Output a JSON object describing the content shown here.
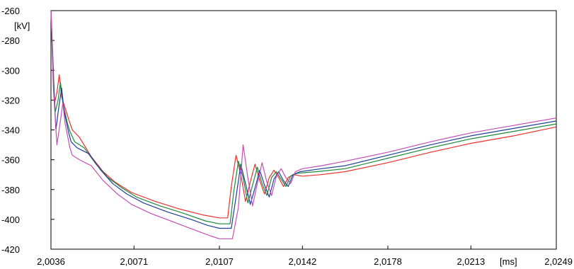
{
  "chart_data": {
    "type": "line",
    "title": "",
    "ylabel": "[kV]",
    "xunit": "[ms]",
    "xlim": [
      2.0036,
      2.0249
    ],
    "ylim": [
      -420,
      -260
    ],
    "xticks": [
      2.0036,
      2.0071,
      2.0107,
      2.0142,
      2.0178,
      2.0213,
      2.0249
    ],
    "xtick_labels": [
      "2,0036",
      "2,0071",
      "2,0107",
      "2,0142",
      "2,0178",
      "2,0213",
      "2,0249"
    ],
    "yticks": [
      -260,
      -280,
      -300,
      -320,
      -340,
      -360,
      -380,
      -400,
      -420
    ],
    "ytick_labels": [
      "-260",
      "-280",
      "-300",
      "-320",
      "-340",
      "-360",
      "-380",
      "-400",
      "-420"
    ],
    "grid": false,
    "legend": "none",
    "series": [
      {
        "color": "#e8322d",
        "points": [
          [
            2.0036,
            -260
          ],
          [
            2.0037,
            -300
          ],
          [
            2.00375,
            -322
          ],
          [
            2.00385,
            -315
          ],
          [
            2.00395,
            -303
          ],
          [
            2.00405,
            -318
          ],
          [
            2.00425,
            -328
          ],
          [
            2.00435,
            -333
          ],
          [
            2.0045,
            -340
          ],
          [
            2.0048,
            -345
          ],
          [
            2.0053,
            -358
          ],
          [
            2.0058,
            -368
          ],
          [
            2.0063,
            -375
          ],
          [
            2.007,
            -382
          ],
          [
            2.008,
            -388
          ],
          [
            2.009,
            -393
          ],
          [
            2.01,
            -397
          ],
          [
            2.0107,
            -399
          ],
          [
            2.01105,
            -399
          ],
          [
            2.0112,
            -378
          ],
          [
            2.0114,
            -357
          ],
          [
            2.0116,
            -370
          ],
          [
            2.0118,
            -388
          ],
          [
            2.012,
            -375
          ],
          [
            2.0122,
            -363
          ],
          [
            2.0124,
            -374
          ],
          [
            2.0126,
            -383
          ],
          [
            2.0128,
            -372
          ],
          [
            2.013,
            -367
          ],
          [
            2.0132,
            -372
          ],
          [
            2.0134,
            -378
          ],
          [
            2.0136,
            -372
          ],
          [
            2.0138,
            -370
          ],
          [
            2.0142,
            -371
          ],
          [
            2.015,
            -370
          ],
          [
            2.016,
            -368
          ],
          [
            2.0178,
            -362
          ],
          [
            2.0196,
            -355
          ],
          [
            2.0213,
            -349
          ],
          [
            2.0231,
            -344
          ],
          [
            2.0249,
            -338
          ]
        ]
      },
      {
        "color": "#1e8a3c",
        "points": [
          [
            2.0036,
            -260
          ],
          [
            2.0037,
            -303
          ],
          [
            2.00378,
            -328
          ],
          [
            2.0039,
            -320
          ],
          [
            2.004,
            -308
          ],
          [
            2.0041,
            -322
          ],
          [
            2.0043,
            -336
          ],
          [
            2.0044,
            -341
          ],
          [
            2.0046,
            -348
          ],
          [
            2.005,
            -352
          ],
          [
            2.0055,
            -363
          ],
          [
            2.006,
            -372
          ],
          [
            2.0066,
            -379
          ],
          [
            2.0072,
            -385
          ],
          [
            2.0082,
            -391
          ],
          [
            2.0092,
            -396
          ],
          [
            2.0101,
            -401
          ],
          [
            2.0107,
            -403
          ],
          [
            2.01115,
            -403
          ],
          [
            2.0113,
            -382
          ],
          [
            2.0115,
            -361
          ],
          [
            2.0117,
            -372
          ],
          [
            2.0119,
            -389
          ],
          [
            2.0121,
            -377
          ],
          [
            2.0123,
            -365
          ],
          [
            2.0125,
            -376
          ],
          [
            2.0127,
            -384
          ],
          [
            2.0129,
            -372
          ],
          [
            2.0131,
            -368
          ],
          [
            2.0133,
            -373
          ],
          [
            2.0135,
            -378
          ],
          [
            2.0137,
            -371
          ],
          [
            2.014,
            -369
          ],
          [
            2.0148,
            -368
          ],
          [
            2.016,
            -366
          ],
          [
            2.0178,
            -359
          ],
          [
            2.0196,
            -352
          ],
          [
            2.0213,
            -346
          ],
          [
            2.0231,
            -341
          ],
          [
            2.0249,
            -336
          ]
        ]
      },
      {
        "color": "#1f3f9a",
        "points": [
          [
            2.0036,
            -260
          ],
          [
            2.0037,
            -306
          ],
          [
            2.00381,
            -340
          ],
          [
            2.00392,
            -326
          ],
          [
            2.00405,
            -312
          ],
          [
            2.00415,
            -327
          ],
          [
            2.00435,
            -342
          ],
          [
            2.00445,
            -348
          ],
          [
            2.0047,
            -352
          ],
          [
            2.0052,
            -356
          ],
          [
            2.0057,
            -367
          ],
          [
            2.0062,
            -376
          ],
          [
            2.0068,
            -383
          ],
          [
            2.0075,
            -389
          ],
          [
            2.0085,
            -395
          ],
          [
            2.0095,
            -400
          ],
          [
            2.0102,
            -404
          ],
          [
            2.0107,
            -406
          ],
          [
            2.0112,
            -406
          ],
          [
            2.0114,
            -385
          ],
          [
            2.0116,
            -363
          ],
          [
            2.0118,
            -376
          ],
          [
            2.012,
            -390
          ],
          [
            2.0122,
            -379
          ],
          [
            2.0124,
            -367
          ],
          [
            2.0126,
            -377
          ],
          [
            2.0128,
            -385
          ],
          [
            2.013,
            -373
          ],
          [
            2.0132,
            -368
          ],
          [
            2.0134,
            -374
          ],
          [
            2.0136,
            -378
          ],
          [
            2.0138,
            -370
          ],
          [
            2.0141,
            -368
          ],
          [
            2.015,
            -366
          ],
          [
            2.016,
            -364
          ],
          [
            2.0178,
            -357
          ],
          [
            2.0196,
            -350
          ],
          [
            2.0213,
            -344
          ],
          [
            2.0231,
            -339
          ],
          [
            2.0249,
            -334
          ]
        ]
      },
      {
        "color": "#c24fb4",
        "points": [
          [
            2.0036,
            -260
          ],
          [
            2.0037,
            -312
          ],
          [
            2.00385,
            -350
          ],
          [
            2.00398,
            -336
          ],
          [
            2.0041,
            -322
          ],
          [
            2.0042,
            -336
          ],
          [
            2.0044,
            -352
          ],
          [
            2.0045,
            -357
          ],
          [
            2.0048,
            -360
          ],
          [
            2.0053,
            -364
          ],
          [
            2.0058,
            -374
          ],
          [
            2.0064,
            -383
          ],
          [
            2.007,
            -390
          ],
          [
            2.0078,
            -396
          ],
          [
            2.0088,
            -402
          ],
          [
            2.0098,
            -408
          ],
          [
            2.0103,
            -411
          ],
          [
            2.0107,
            -413
          ],
          [
            2.01125,
            -413
          ],
          [
            2.0115,
            -392
          ],
          [
            2.0117,
            -350
          ],
          [
            2.0119,
            -372
          ],
          [
            2.0121,
            -391
          ],
          [
            2.0123,
            -376
          ],
          [
            2.0125,
            -362
          ],
          [
            2.0127,
            -375
          ],
          [
            2.0129,
            -384
          ],
          [
            2.0131,
            -371
          ],
          [
            2.0133,
            -366
          ],
          [
            2.0135,
            -372
          ],
          [
            2.0137,
            -376
          ],
          [
            2.0139,
            -368
          ],
          [
            2.0142,
            -366
          ],
          [
            2.015,
            -364
          ],
          [
            2.016,
            -361
          ],
          [
            2.0178,
            -355
          ],
          [
            2.0196,
            -348
          ],
          [
            2.0213,
            -342
          ],
          [
            2.0231,
            -337
          ],
          [
            2.0249,
            -332
          ]
        ]
      }
    ]
  }
}
